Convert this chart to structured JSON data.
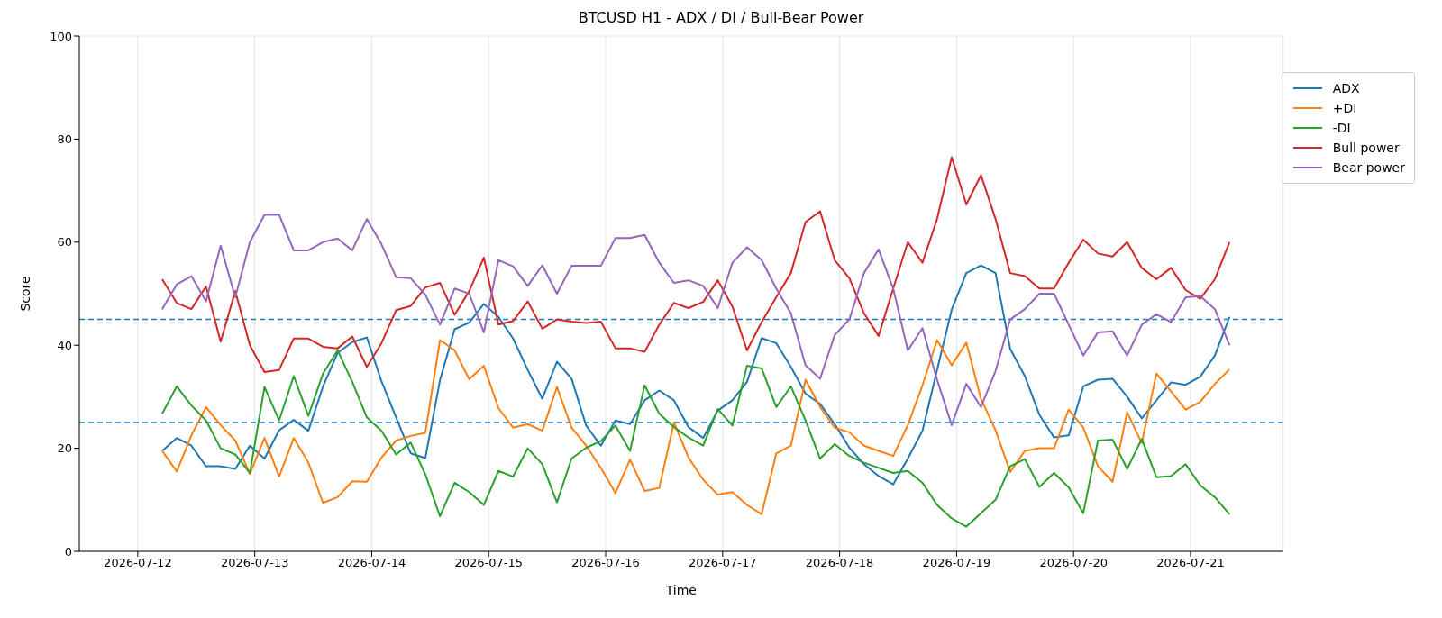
{
  "chart_data": {
    "type": "line",
    "title": "BTCUSD H1 - ADX / DI / Bull-Bear Power",
    "xlabel": "Time",
    "ylabel": "Score",
    "x": [
      "2026-07-12T05:00",
      "2026-07-12T08:00",
      "2026-07-12T11:00",
      "2026-07-12T14:00",
      "2026-07-12T17:00",
      "2026-07-12T20:00",
      "2026-07-12T23:00",
      "2026-07-13T02:00",
      "2026-07-13T05:00",
      "2026-07-13T08:00",
      "2026-07-13T11:00",
      "2026-07-13T14:00",
      "2026-07-13T17:00",
      "2026-07-13T20:00",
      "2026-07-13T23:00",
      "2026-07-14T02:00",
      "2026-07-14T05:00",
      "2026-07-14T08:00",
      "2026-07-14T11:00",
      "2026-07-14T14:00",
      "2026-07-14T17:00",
      "2026-07-14T20:00",
      "2026-07-14T23:00",
      "2026-07-15T02:00",
      "2026-07-15T05:00",
      "2026-07-15T08:00",
      "2026-07-15T11:00",
      "2026-07-15T14:00",
      "2026-07-15T17:00",
      "2026-07-15T20:00",
      "2026-07-15T23:00",
      "2026-07-16T02:00",
      "2026-07-16T05:00",
      "2026-07-16T08:00",
      "2026-07-16T11:00",
      "2026-07-16T14:00",
      "2026-07-16T17:00",
      "2026-07-16T20:00",
      "2026-07-16T23:00",
      "2026-07-17T02:00",
      "2026-07-17T05:00",
      "2026-07-17T08:00",
      "2026-07-17T11:00",
      "2026-07-17T14:00",
      "2026-07-17T17:00",
      "2026-07-17T20:00",
      "2026-07-17T23:00",
      "2026-07-18T02:00",
      "2026-07-18T05:00",
      "2026-07-18T08:00",
      "2026-07-18T11:00",
      "2026-07-18T14:00",
      "2026-07-18T17:00",
      "2026-07-18T20:00",
      "2026-07-18T23:00",
      "2026-07-19T02:00",
      "2026-07-19T05:00",
      "2026-07-19T08:00",
      "2026-07-19T11:00",
      "2026-07-19T14:00",
      "2026-07-19T17:00",
      "2026-07-19T20:00",
      "2026-07-19T23:00",
      "2026-07-20T02:00",
      "2026-07-20T05:00",
      "2026-07-20T08:00",
      "2026-07-20T11:00",
      "2026-07-20T14:00",
      "2026-07-20T17:00",
      "2026-07-20T20:00",
      "2026-07-20T23:00",
      "2026-07-21T02:00",
      "2026-07-21T05:00",
      "2026-07-21T08:00"
    ],
    "series": [
      {
        "name": "ADX",
        "color": "#1f77b4",
        "values": [
          19.5,
          22,
          20.5,
          16.5,
          16.5,
          16,
          20.5,
          18,
          23.5,
          25.5,
          23.4,
          32,
          38.5,
          40.6,
          41.5,
          33,
          26,
          19,
          18.1,
          33.2,
          43.1,
          44.4,
          48,
          45.5,
          41.3,
          35.2,
          29.6,
          36.8,
          33.5,
          24.4,
          20.5,
          25.4,
          24.7,
          29.3,
          31.2,
          29.3,
          24.1,
          22,
          27.3,
          29.3,
          32.9,
          41.4,
          40.4,
          35.8,
          30.6,
          28.6,
          24.7,
          20.1,
          16.9,
          14.6,
          13,
          18,
          23.4,
          35.2,
          46.9,
          54,
          55.5,
          54,
          39.3,
          34,
          26.5,
          22.1,
          22.5,
          32,
          33.3,
          33.5,
          30,
          25.8,
          29.3,
          32.8,
          32.3,
          33.9,
          38,
          45.5
        ]
      },
      {
        "name": "+DI",
        "color": "#ff7f0e",
        "values": [
          19.5,
          15.5,
          22.5,
          28,
          24.5,
          21.5,
          15,
          22,
          14.5,
          22,
          17.2,
          9.4,
          10.5,
          13.6,
          13.5,
          18.2,
          21.5,
          22.4,
          23,
          41,
          39,
          33.4,
          36,
          27.8,
          24,
          24.7,
          23.4,
          31.9,
          24,
          20.5,
          16.2,
          11.3,
          17.8,
          11.7,
          12.3,
          25,
          18.2,
          13.9,
          11,
          11.5,
          9,
          7.2,
          19,
          20.5,
          33.3,
          28,
          24,
          23.1,
          20.5,
          19.5,
          18.5,
          24.5,
          32.2,
          41,
          36.1,
          40.5,
          29.6,
          23.5,
          15.4,
          19.5,
          20,
          20,
          27.5,
          24,
          16.5,
          13.5,
          27,
          21,
          34.5,
          31,
          27.5,
          29,
          32.5,
          35.3
        ]
      },
      {
        "name": "-DI",
        "color": "#2ca02c",
        "values": [
          26.7,
          32,
          28.3,
          25.4,
          20,
          18.8,
          15.2,
          31.9,
          25.4,
          34,
          26.3,
          34.5,
          39,
          32.9,
          26,
          23.4,
          18.8,
          21.1,
          14.9,
          6.8,
          13.3,
          11.5,
          9,
          15.6,
          14.5,
          20,
          16.9,
          9.5,
          18,
          20.1,
          21.4,
          24.4,
          19.5,
          32.2,
          26.7,
          24.1,
          22.1,
          20.5,
          27.6,
          24.4,
          36,
          35.5,
          28,
          32,
          25.4,
          18,
          20.8,
          18.5,
          17.2,
          16.2,
          15.2,
          15.6,
          13.3,
          9,
          6.4,
          4.8,
          7.4,
          10,
          16.5,
          17.9,
          12.5,
          15.2,
          12.4,
          7.4,
          21.5,
          21.7,
          16,
          21.8,
          14.4,
          14.6,
          16.9,
          12.8,
          10.5,
          7.2
        ]
      },
      {
        "name": "Bull power",
        "color": "#d62728",
        "values": [
          52.8,
          48.2,
          47,
          51.4,
          40.7,
          50.5,
          40,
          34.8,
          35.2,
          41.3,
          41.3,
          39.7,
          39.4,
          41.7,
          35.8,
          40.4,
          46.8,
          47.6,
          51.2,
          52.1,
          45.9,
          50.5,
          57,
          44,
          44.7,
          48.5,
          43.2,
          45,
          44.6,
          44.3,
          44.6,
          39.4,
          39.4,
          38.7,
          44,
          48.2,
          47.2,
          48.4,
          52.6,
          47.5,
          39,
          44.5,
          49.3,
          54,
          63.9,
          66,
          56.5,
          53,
          46.2,
          41.8,
          51,
          60,
          56,
          64.5,
          76.5,
          67.3,
          73,
          64.5,
          54,
          53.4,
          51,
          51,
          56,
          60.5,
          57.8,
          57.2,
          60,
          55,
          52.8,
          55,
          50.7,
          49,
          52.8,
          60
        ]
      },
      {
        "name": "Bear power",
        "color": "#9467bd",
        "values": [
          47,
          51.8,
          53.4,
          48.5,
          59.3,
          49.3,
          60,
          65.3,
          65.3,
          58.4,
          58.4,
          60,
          60.7,
          58.4,
          64.5,
          59.6,
          53.2,
          53,
          49.8,
          44,
          51,
          50,
          42.5,
          56.5,
          55.3,
          51.5,
          55.5,
          50,
          55.4,
          55.4,
          55.4,
          60.8,
          60.8,
          61.4,
          56,
          52.1,
          52.6,
          51.5,
          47.2,
          56,
          59,
          56.5,
          51,
          46.2,
          36.1,
          33.5,
          42,
          45,
          54,
          58.6,
          51,
          39,
          43.3,
          33.3,
          24.5,
          32.5,
          28,
          35,
          45,
          47,
          50,
          50,
          44,
          38,
          42.5,
          42.7,
          38,
          44,
          46,
          44.5,
          49.3,
          49.5,
          47,
          40
        ]
      }
    ],
    "xlim": [
      "2026-07-11T12:00",
      "2026-07-21T19:00"
    ],
    "xticks": [
      "2026-07-12",
      "2026-07-13",
      "2026-07-14",
      "2026-07-15",
      "2026-07-16",
      "2026-07-17",
      "2026-07-18",
      "2026-07-19",
      "2026-07-20",
      "2026-07-21"
    ],
    "ylim": [
      0,
      100
    ],
    "yticks": [
      0,
      20,
      40,
      60,
      80,
      100
    ],
    "ref_lines": [
      {
        "axis": "y",
        "value": 45,
        "color": "#1f77b4",
        "line_style": "dashed"
      },
      {
        "axis": "y",
        "value": 25,
        "color": "#1f77b4",
        "line_style": "dashed"
      }
    ],
    "grid": true,
    "legend": "top right",
    "line_style": "solid"
  }
}
